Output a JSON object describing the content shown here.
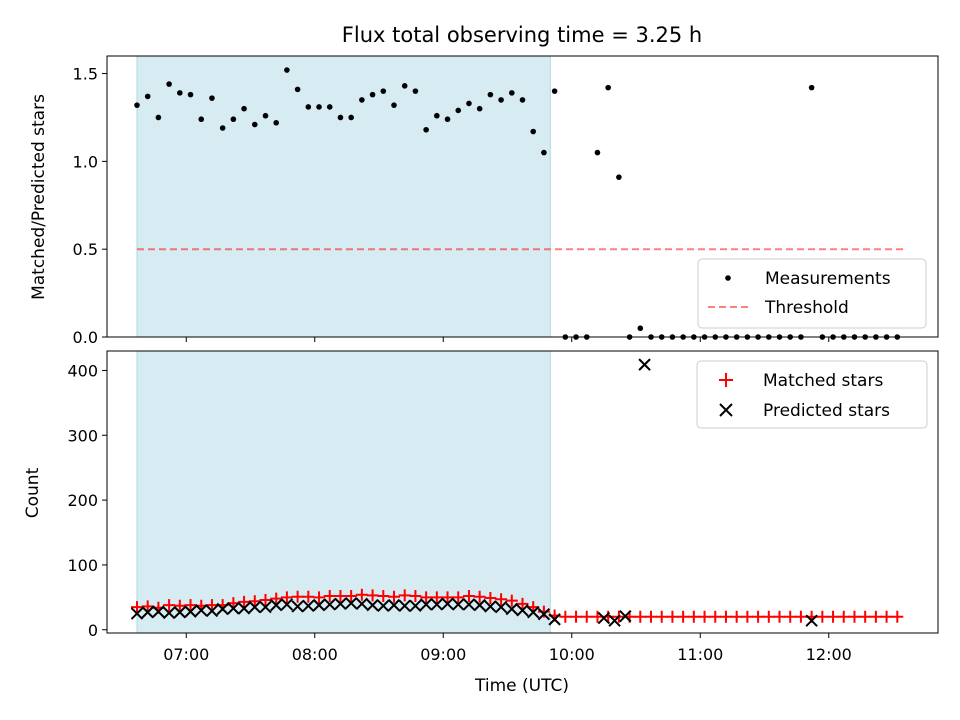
{
  "title": "Flux total observing time = 3.25 h",
  "xlabel": "Time (UTC)",
  "x_ticks": [
    "07:00",
    "08:00",
    "09:00",
    "10:00",
    "11:00",
    "12:00"
  ],
  "colors": {
    "shade": "#add8e6",
    "threshold": "#ff0000",
    "matched": "#ff0000",
    "predicted": "#000000",
    "measurements": "#000000"
  },
  "chart_data": [
    {
      "type": "scatter",
      "ylabel": "Matched/Predicted stars",
      "ylim": [
        0,
        1.6
      ],
      "xlim": [
        "06:23",
        "12:51"
      ],
      "y_ticks": [
        "0.0",
        "0.5",
        "1.0",
        "1.5"
      ],
      "shaded_span": [
        "06:37",
        "09:50"
      ],
      "legend_position": "lower-right",
      "threshold": {
        "name": "Threshold",
        "value": 0.5,
        "x": [
          "06:37",
          "12:35"
        ],
        "style": "dashed"
      },
      "series": [
        {
          "name": "Measurements",
          "marker": "dot",
          "points": [
            [
              "06:37",
              1.32
            ],
            [
              "06:42",
              1.37
            ],
            [
              "06:47",
              1.25
            ],
            [
              "06:52",
              1.44
            ],
            [
              "06:57",
              1.39
            ],
            [
              "07:02",
              1.38
            ],
            [
              "07:07",
              1.24
            ],
            [
              "07:12",
              1.36
            ],
            [
              "07:17",
              1.19
            ],
            [
              "07:22",
              1.24
            ],
            [
              "07:27",
              1.3
            ],
            [
              "07:32",
              1.21
            ],
            [
              "07:37",
              1.26
            ],
            [
              "07:42",
              1.22
            ],
            [
              "07:47",
              1.52
            ],
            [
              "07:52",
              1.41
            ],
            [
              "07:57",
              1.31
            ],
            [
              "08:02",
              1.31
            ],
            [
              "08:07",
              1.31
            ],
            [
              "08:12",
              1.25
            ],
            [
              "08:17",
              1.25
            ],
            [
              "08:22",
              1.35
            ],
            [
              "08:27",
              1.38
            ],
            [
              "08:32",
              1.4
            ],
            [
              "08:37",
              1.32
            ],
            [
              "08:42",
              1.43
            ],
            [
              "08:47",
              1.4
            ],
            [
              "08:52",
              1.18
            ],
            [
              "08:57",
              1.26
            ],
            [
              "09:02",
              1.24
            ],
            [
              "09:07",
              1.29
            ],
            [
              "09:12",
              1.33
            ],
            [
              "09:17",
              1.3
            ],
            [
              "09:22",
              1.38
            ],
            [
              "09:27",
              1.35
            ],
            [
              "09:32",
              1.39
            ],
            [
              "09:37",
              1.35
            ],
            [
              "09:42",
              1.17
            ],
            [
              "09:47",
              1.05
            ],
            [
              "09:52",
              1.4
            ],
            [
              "09:57",
              0
            ],
            [
              "10:02",
              0
            ],
            [
              "10:07",
              0
            ],
            [
              "10:12",
              1.05
            ],
            [
              "10:17",
              1.42
            ],
            [
              "10:22",
              0.91
            ],
            [
              "10:27",
              0
            ],
            [
              "10:32",
              0.05
            ],
            [
              "10:37",
              0
            ],
            [
              "10:42",
              0
            ],
            [
              "10:47",
              0
            ],
            [
              "10:52",
              0
            ],
            [
              "10:57",
              0
            ],
            [
              "11:02",
              0
            ],
            [
              "11:07",
              0
            ],
            [
              "11:12",
              0
            ],
            [
              "11:17",
              0
            ],
            [
              "11:22",
              0
            ],
            [
              "11:27",
              0
            ],
            [
              "11:32",
              0
            ],
            [
              "11:37",
              0
            ],
            [
              "11:42",
              0
            ],
            [
              "11:47",
              0
            ],
            [
              "11:52",
              1.42
            ],
            [
              "11:57",
              0
            ],
            [
              "12:02",
              0
            ],
            [
              "12:07",
              0
            ],
            [
              "12:12",
              0
            ],
            [
              "12:17",
              0
            ],
            [
              "12:22",
              0
            ],
            [
              "12:27",
              0
            ],
            [
              "12:32",
              0
            ]
          ]
        }
      ]
    },
    {
      "type": "scatter",
      "ylabel": "Count",
      "ylim": [
        -5,
        430
      ],
      "xlim": [
        "06:23",
        "12:51"
      ],
      "y_ticks": [
        "0",
        "100",
        "200",
        "300",
        "400"
      ],
      "shaded_span": [
        "06:37",
        "09:50"
      ],
      "legend_position": "upper-right",
      "series": [
        {
          "name": "Matched stars",
          "marker": "plus",
          "points": [
            [
              "06:37",
              35
            ],
            [
              "06:42",
              36
            ],
            [
              "06:47",
              34
            ],
            [
              "06:52",
              38
            ],
            [
              "06:57",
              37
            ],
            [
              "07:02",
              38
            ],
            [
              "07:07",
              37
            ],
            [
              "07:12",
              38
            ],
            [
              "07:17",
              38
            ],
            [
              "07:22",
              41
            ],
            [
              "07:27",
              43
            ],
            [
              "07:32",
              44
            ],
            [
              "07:37",
              46
            ],
            [
              "07:42",
              48
            ],
            [
              "07:47",
              50
            ],
            [
              "07:52",
              51
            ],
            [
              "07:57",
              51
            ],
            [
              "08:02",
              50
            ],
            [
              "08:07",
              52
            ],
            [
              "08:12",
              52
            ],
            [
              "08:17",
              52
            ],
            [
              "08:22",
              54
            ],
            [
              "08:27",
              53
            ],
            [
              "08:32",
              52
            ],
            [
              "08:37",
              51
            ],
            [
              "08:42",
              53
            ],
            [
              "08:47",
              52
            ],
            [
              "08:52",
              50
            ],
            [
              "08:57",
              50
            ],
            [
              "09:02",
              50
            ],
            [
              "09:07",
              50
            ],
            [
              "09:12",
              52
            ],
            [
              "09:17",
              51
            ],
            [
              "09:22",
              49
            ],
            [
              "09:27",
              47
            ],
            [
              "09:32",
              45
            ],
            [
              "09:37",
              40
            ],
            [
              "09:42",
              35
            ],
            [
              "09:47",
              28
            ],
            [
              "09:52",
              22
            ],
            [
              "09:57",
              20
            ],
            [
              "10:02",
              20
            ],
            [
              "10:07",
              20
            ],
            [
              "10:12",
              20
            ],
            [
              "10:17",
              20
            ],
            [
              "10:22",
              20
            ],
            [
              "10:27",
              20
            ],
            [
              "10:32",
              20
            ],
            [
              "10:37",
              20
            ],
            [
              "10:42",
              20
            ],
            [
              "10:47",
              20
            ],
            [
              "10:52",
              20
            ],
            [
              "10:57",
              20
            ],
            [
              "11:02",
              20
            ],
            [
              "11:07",
              20
            ],
            [
              "11:12",
              20
            ],
            [
              "11:17",
              20
            ],
            [
              "11:22",
              20
            ],
            [
              "11:27",
              20
            ],
            [
              "11:32",
              20
            ],
            [
              "11:37",
              20
            ],
            [
              "11:42",
              20
            ],
            [
              "11:47",
              20
            ],
            [
              "11:52",
              20
            ],
            [
              "11:57",
              20
            ],
            [
              "12:02",
              20
            ],
            [
              "12:07",
              20
            ],
            [
              "12:12",
              20
            ],
            [
              "12:17",
              20
            ],
            [
              "12:22",
              20
            ],
            [
              "12:27",
              20
            ],
            [
              "12:32",
              20
            ]
          ]
        },
        {
          "name": "Predicted stars",
          "marker": "x",
          "points": [
            [
              "06:37",
              25
            ],
            [
              "06:42",
              27
            ],
            [
              "06:47",
              28
            ],
            [
              "06:52",
              26
            ],
            [
              "06:57",
              27
            ],
            [
              "07:02",
              28
            ],
            [
              "07:07",
              30
            ],
            [
              "07:12",
              29
            ],
            [
              "07:17",
              32
            ],
            [
              "07:22",
              33
            ],
            [
              "07:27",
              33
            ],
            [
              "07:32",
              35
            ],
            [
              "07:37",
              35
            ],
            [
              "07:42",
              38
            ],
            [
              "07:47",
              39
            ],
            [
              "07:52",
              36
            ],
            [
              "07:57",
              37
            ],
            [
              "08:02",
              38
            ],
            [
              "08:07",
              39
            ],
            [
              "08:12",
              40
            ],
            [
              "08:17",
              41
            ],
            [
              "08:22",
              40
            ],
            [
              "08:27",
              38
            ],
            [
              "08:32",
              37
            ],
            [
              "08:37",
              38
            ],
            [
              "08:42",
              37
            ],
            [
              "08:47",
              37
            ],
            [
              "08:52",
              39
            ],
            [
              "08:57",
              39
            ],
            [
              "09:02",
              40
            ],
            [
              "09:07",
              39
            ],
            [
              "09:12",
              39
            ],
            [
              "09:17",
              38
            ],
            [
              "09:22",
              36
            ],
            [
              "09:27",
              35
            ],
            [
              "09:32",
              32
            ],
            [
              "09:37",
              30
            ],
            [
              "09:42",
              27
            ],
            [
              "09:47",
              24
            ],
            [
              "09:52",
              16
            ],
            [
              "10:15",
              18
            ],
            [
              "10:20",
              14
            ],
            [
              "10:25",
              21
            ],
            [
              "10:34",
              409
            ],
            [
              "11:52",
              14
            ]
          ]
        }
      ]
    }
  ]
}
